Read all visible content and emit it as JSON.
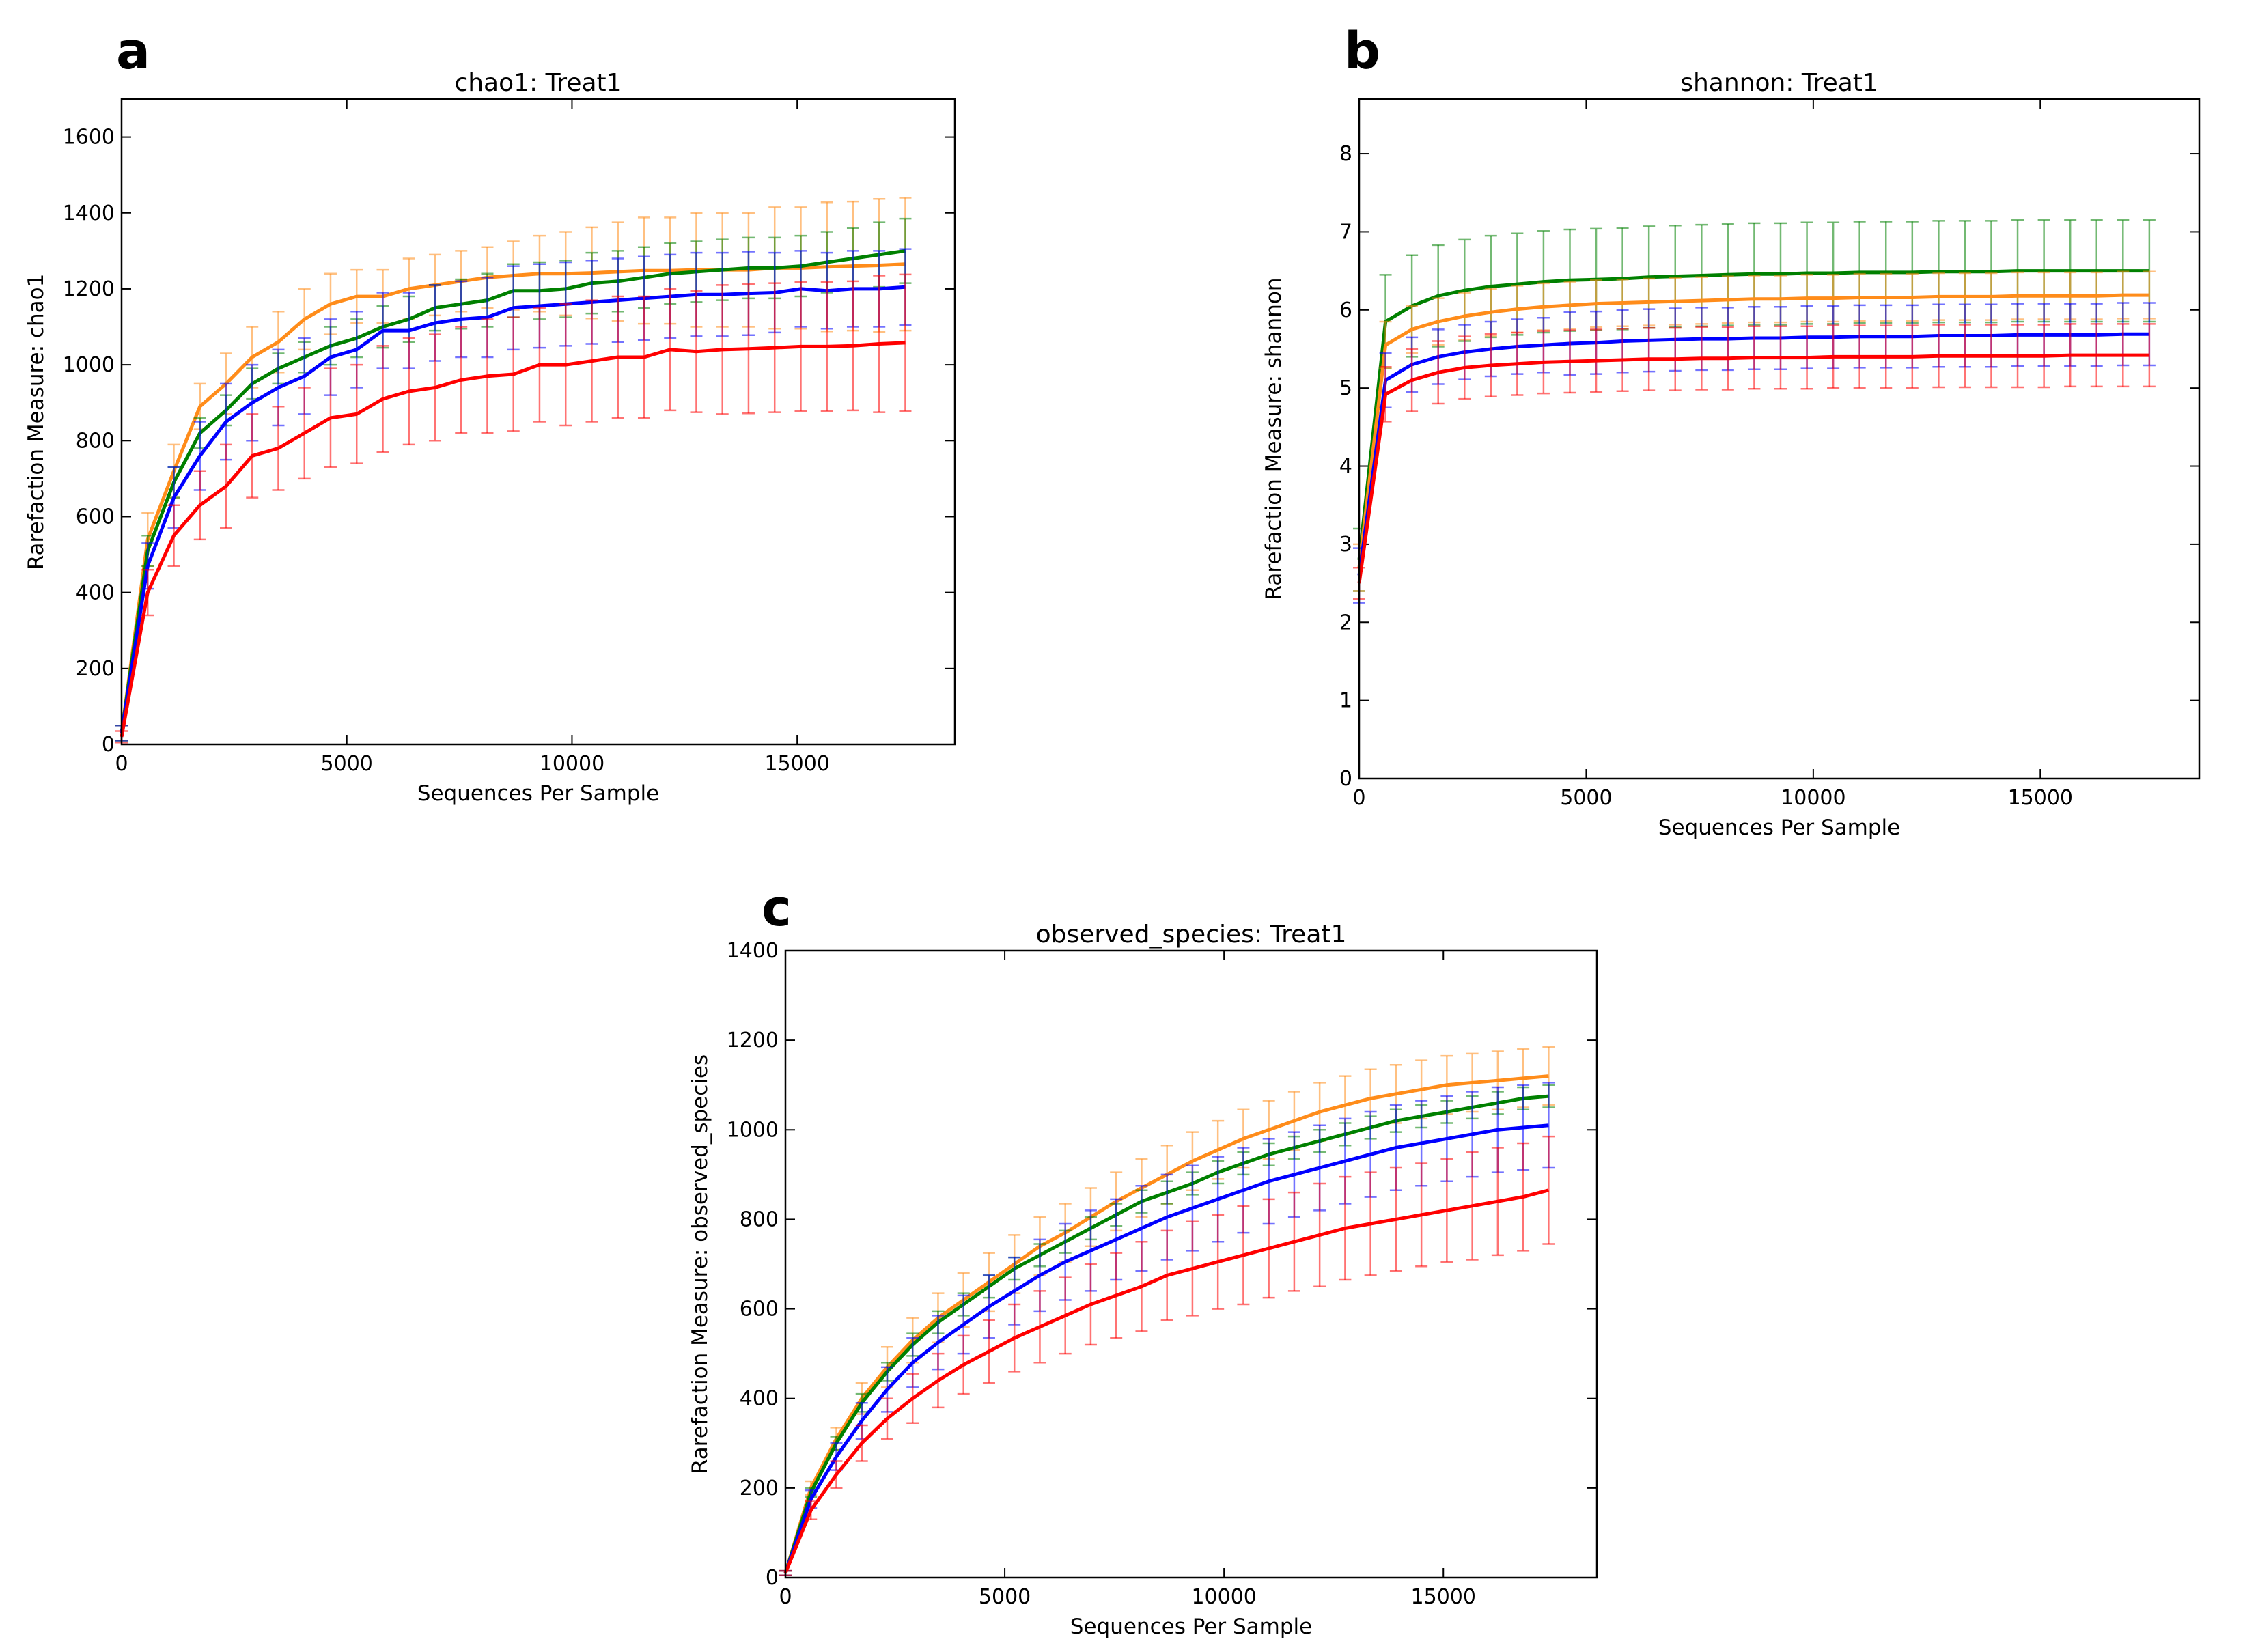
{
  "chart_data": [
    {
      "panel": "a",
      "type": "line",
      "title": "chao1: Treat1",
      "xlabel": "Sequences Per Sample",
      "ylabel": "Rarefaction Measure: chao1",
      "xlim": [
        0,
        18500
      ],
      "ylim": [
        0,
        1700
      ],
      "xticks": [
        0,
        5000,
        10000,
        15000
      ],
      "yticks": [
        0,
        200,
        400,
        600,
        800,
        1000,
        1200,
        1400,
        1600
      ],
      "legend": "none",
      "grid": false,
      "x": [
        0,
        580,
        1160,
        1740,
        2320,
        2900,
        3480,
        4060,
        4640,
        5220,
        5800,
        6380,
        6960,
        7540,
        8120,
        8700,
        9280,
        9860,
        10440,
        11020,
        11600,
        12180,
        12760,
        13340,
        13920,
        14500,
        15080,
        15660,
        16240,
        16820,
        17400
      ],
      "series": [
        {
          "name": "orange",
          "color": "#ff8c1a",
          "values": [
            30,
            540,
            720,
            890,
            950,
            1020,
            1060,
            1120,
            1160,
            1180,
            1180,
            1200,
            1210,
            1220,
            1230,
            1235,
            1240,
            1240,
            1242,
            1245,
            1248,
            1248,
            1250,
            1250,
            1250,
            1255,
            1255,
            1258,
            1260,
            1262,
            1265
          ],
          "err": [
            20,
            70,
            70,
            60,
            80,
            80,
            80,
            80,
            80,
            70,
            70,
            80,
            80,
            80,
            80,
            90,
            100,
            110,
            120,
            130,
            140,
            140,
            150,
            150,
            150,
            160,
            160,
            170,
            170,
            175,
            175
          ]
        },
        {
          "name": "green",
          "color": "#008000",
          "values": [
            30,
            510,
            690,
            820,
            880,
            950,
            990,
            1020,
            1050,
            1070,
            1100,
            1120,
            1150,
            1160,
            1170,
            1195,
            1195,
            1200,
            1215,
            1220,
            1230,
            1240,
            1245,
            1250,
            1255,
            1255,
            1260,
            1270,
            1280,
            1290,
            1300
          ],
          "err": [
            20,
            40,
            40,
            40,
            40,
            40,
            40,
            40,
            50,
            50,
            55,
            60,
            60,
            65,
            70,
            70,
            75,
            75,
            80,
            80,
            80,
            80,
            80,
            80,
            80,
            80,
            80,
            80,
            80,
            85,
            85
          ]
        },
        {
          "name": "blue",
          "color": "#0000ff",
          "values": [
            30,
            470,
            650,
            760,
            850,
            900,
            940,
            970,
            1020,
            1040,
            1090,
            1090,
            1110,
            1120,
            1125,
            1150,
            1155,
            1160,
            1165,
            1170,
            1175,
            1180,
            1185,
            1185,
            1188,
            1190,
            1200,
            1195,
            1200,
            1200,
            1205
          ],
          "err": [
            20,
            60,
            80,
            90,
            100,
            100,
            100,
            100,
            100,
            100,
            100,
            100,
            100,
            100,
            105,
            110,
            110,
            110,
            110,
            110,
            110,
            110,
            110,
            110,
            110,
            105,
            100,
            100,
            100,
            100,
            100
          ]
        },
        {
          "name": "red",
          "color": "#ff0000",
          "values": [
            20,
            400,
            550,
            630,
            680,
            760,
            780,
            820,
            860,
            870,
            910,
            930,
            940,
            960,
            970,
            975,
            1000,
            1000,
            1010,
            1020,
            1020,
            1040,
            1035,
            1040,
            1042,
            1045,
            1048,
            1048,
            1050,
            1055,
            1058
          ],
          "err": [
            15,
            60,
            80,
            90,
            110,
            110,
            110,
            120,
            130,
            130,
            140,
            140,
            140,
            140,
            150,
            150,
            150,
            160,
            160,
            160,
            160,
            160,
            160,
            170,
            170,
            170,
            170,
            170,
            170,
            180,
            180
          ]
        }
      ]
    },
    {
      "panel": "b",
      "type": "line",
      "title": "shannon: Treat1",
      "xlabel": "Sequences Per Sample",
      "ylabel": "Rarefaction Measure: shannon",
      "xlim": [
        0,
        18500
      ],
      "ylim": [
        0,
        8.7
      ],
      "xticks": [
        0,
        5000,
        10000,
        15000
      ],
      "yticks": [
        0,
        1,
        2,
        3,
        4,
        5,
        6,
        7,
        8
      ],
      "legend": "none",
      "grid": false,
      "x": [
        0,
        580,
        1160,
        1740,
        2320,
        2900,
        3480,
        4060,
        4640,
        5220,
        5800,
        6380,
        6960,
        7540,
        8120,
        8700,
        9280,
        9860,
        10440,
        11020,
        11600,
        12180,
        12760,
        13340,
        13920,
        14500,
        15080,
        15660,
        16240,
        16820,
        17400
      ],
      "series": [
        {
          "name": "green",
          "color": "#008000",
          "values": [
            2.8,
            5.85,
            6.05,
            6.18,
            6.25,
            6.3,
            6.33,
            6.36,
            6.38,
            6.39,
            6.4,
            6.42,
            6.43,
            6.44,
            6.45,
            6.46,
            6.46,
            6.47,
            6.47,
            6.48,
            6.48,
            6.48,
            6.49,
            6.49,
            6.49,
            6.5,
            6.5,
            6.5,
            6.5,
            6.5,
            6.5
          ],
          "err": [
            0.4,
            0.6,
            0.65,
            0.65,
            0.65,
            0.65,
            0.65,
            0.65,
            0.65,
            0.65,
            0.65,
            0.65,
            0.65,
            0.65,
            0.65,
            0.65,
            0.65,
            0.65,
            0.65,
            0.65,
            0.65,
            0.65,
            0.65,
            0.65,
            0.65,
            0.65,
            0.65,
            0.65,
            0.65,
            0.65,
            0.65
          ]
        },
        {
          "name": "orange",
          "color": "#ff8c1a",
          "values": [
            2.7,
            5.55,
            5.75,
            5.85,
            5.92,
            5.97,
            6.01,
            6.04,
            6.06,
            6.08,
            6.09,
            6.1,
            6.11,
            6.12,
            6.13,
            6.14,
            6.14,
            6.15,
            6.15,
            6.16,
            6.16,
            6.16,
            6.17,
            6.17,
            6.17,
            6.18,
            6.18,
            6.18,
            6.18,
            6.19,
            6.19
          ],
          "err": [
            0.3,
            0.3,
            0.3,
            0.3,
            0.3,
            0.3,
            0.3,
            0.3,
            0.3,
            0.3,
            0.3,
            0.3,
            0.3,
            0.3,
            0.3,
            0.3,
            0.3,
            0.3,
            0.3,
            0.3,
            0.3,
            0.3,
            0.3,
            0.3,
            0.3,
            0.3,
            0.3,
            0.3,
            0.3,
            0.3,
            0.3
          ]
        },
        {
          "name": "blue",
          "color": "#0000ff",
          "values": [
            2.6,
            5.1,
            5.3,
            5.4,
            5.46,
            5.5,
            5.53,
            5.55,
            5.57,
            5.58,
            5.6,
            5.61,
            5.62,
            5.63,
            5.63,
            5.64,
            5.64,
            5.65,
            5.65,
            5.66,
            5.66,
            5.66,
            5.67,
            5.67,
            5.67,
            5.68,
            5.68,
            5.68,
            5.68,
            5.69,
            5.69
          ],
          "err": [
            0.35,
            0.35,
            0.35,
            0.35,
            0.35,
            0.35,
            0.35,
            0.35,
            0.4,
            0.4,
            0.4,
            0.4,
            0.4,
            0.4,
            0.4,
            0.4,
            0.4,
            0.4,
            0.4,
            0.4,
            0.4,
            0.4,
            0.4,
            0.4,
            0.4,
            0.4,
            0.4,
            0.4,
            0.4,
            0.4,
            0.4
          ]
        },
        {
          "name": "red",
          "color": "#ff0000",
          "values": [
            2.5,
            4.92,
            5.1,
            5.2,
            5.26,
            5.29,
            5.31,
            5.33,
            5.34,
            5.35,
            5.36,
            5.37,
            5.37,
            5.38,
            5.38,
            5.39,
            5.39,
            5.39,
            5.4,
            5.4,
            5.4,
            5.4,
            5.41,
            5.41,
            5.41,
            5.41,
            5.41,
            5.42,
            5.42,
            5.42,
            5.42
          ],
          "err": [
            0.2,
            0.35,
            0.4,
            0.4,
            0.4,
            0.4,
            0.4,
            0.4,
            0.4,
            0.4,
            0.4,
            0.4,
            0.4,
            0.4,
            0.4,
            0.4,
            0.4,
            0.4,
            0.4,
            0.4,
            0.4,
            0.4,
            0.4,
            0.4,
            0.4,
            0.4,
            0.4,
            0.4,
            0.4,
            0.4,
            0.4
          ]
        }
      ]
    },
    {
      "panel": "c",
      "type": "line",
      "title": "observed_species: Treat1",
      "xlabel": "Sequences Per Sample",
      "ylabel": "Rarefaction Measure: observed_species",
      "xlim": [
        0,
        18500
      ],
      "ylim": [
        0,
        1400
      ],
      "xticks": [
        0,
        5000,
        10000,
        15000
      ],
      "yticks": [
        0,
        200,
        400,
        600,
        800,
        1000,
        1200,
        1400
      ],
      "legend": "none",
      "grid": false,
      "x": [
        0,
        580,
        1160,
        1740,
        2320,
        2900,
        3480,
        4060,
        4640,
        5220,
        5800,
        6380,
        6960,
        7540,
        8120,
        8700,
        9280,
        9860,
        10440,
        11020,
        11600,
        12180,
        12760,
        13340,
        13920,
        14500,
        15080,
        15660,
        16240,
        16820,
        17400
      ],
      "series": [
        {
          "name": "orange",
          "color": "#ff8c1a",
          "values": [
            10,
            200,
            310,
            400,
            470,
            530,
            580,
            620,
            660,
            700,
            740,
            770,
            805,
            840,
            870,
            900,
            930,
            955,
            980,
            1000,
            1020,
            1040,
            1055,
            1070,
            1080,
            1090,
            1100,
            1105,
            1110,
            1115,
            1120
          ],
          "err": [
            5,
            15,
            25,
            35,
            45,
            50,
            55,
            60,
            65,
            65,
            65,
            65,
            65,
            65,
            65,
            65,
            65,
            65,
            65,
            65,
            65,
            65,
            65,
            65,
            65,
            65,
            65,
            65,
            65,
            65,
            65
          ]
        },
        {
          "name": "green",
          "color": "#008000",
          "values": [
            10,
            190,
            300,
            390,
            460,
            520,
            570,
            610,
            650,
            690,
            720,
            750,
            780,
            810,
            840,
            860,
            880,
            905,
            925,
            945,
            960,
            975,
            990,
            1005,
            1020,
            1030,
            1040,
            1050,
            1060,
            1070,
            1075
          ],
          "err": [
            5,
            10,
            15,
            20,
            20,
            25,
            25,
            25,
            25,
            25,
            25,
            25,
            25,
            25,
            25,
            25,
            25,
            25,
            25,
            25,
            25,
            25,
            25,
            25,
            25,
            25,
            25,
            25,
            25,
            25,
            25
          ]
        },
        {
          "name": "blue",
          "color": "#0000ff",
          "values": [
            10,
            175,
            270,
            350,
            420,
            480,
            525,
            565,
            605,
            640,
            675,
            705,
            730,
            755,
            780,
            805,
            825,
            845,
            865,
            885,
            900,
            915,
            930,
            945,
            960,
            970,
            980,
            990,
            1000,
            1005,
            1010
          ],
          "err": [
            5,
            20,
            30,
            40,
            50,
            55,
            60,
            65,
            70,
            75,
            80,
            85,
            90,
            90,
            95,
            95,
            95,
            95,
            95,
            95,
            95,
            95,
            95,
            95,
            95,
            95,
            95,
            95,
            95,
            95,
            95
          ]
        },
        {
          "name": "red",
          "color": "#ff0000",
          "values": [
            10,
            150,
            230,
            300,
            355,
            400,
            440,
            475,
            505,
            535,
            560,
            585,
            610,
            630,
            650,
            675,
            690,
            705,
            720,
            735,
            750,
            765,
            780,
            790,
            800,
            810,
            820,
            830,
            840,
            850,
            865
          ],
          "err": [
            5,
            20,
            30,
            40,
            45,
            55,
            60,
            65,
            70,
            75,
            80,
            85,
            90,
            95,
            100,
            100,
            105,
            105,
            110,
            110,
            110,
            115,
            115,
            115,
            115,
            115,
            115,
            120,
            120,
            120,
            120
          ]
        }
      ]
    }
  ]
}
